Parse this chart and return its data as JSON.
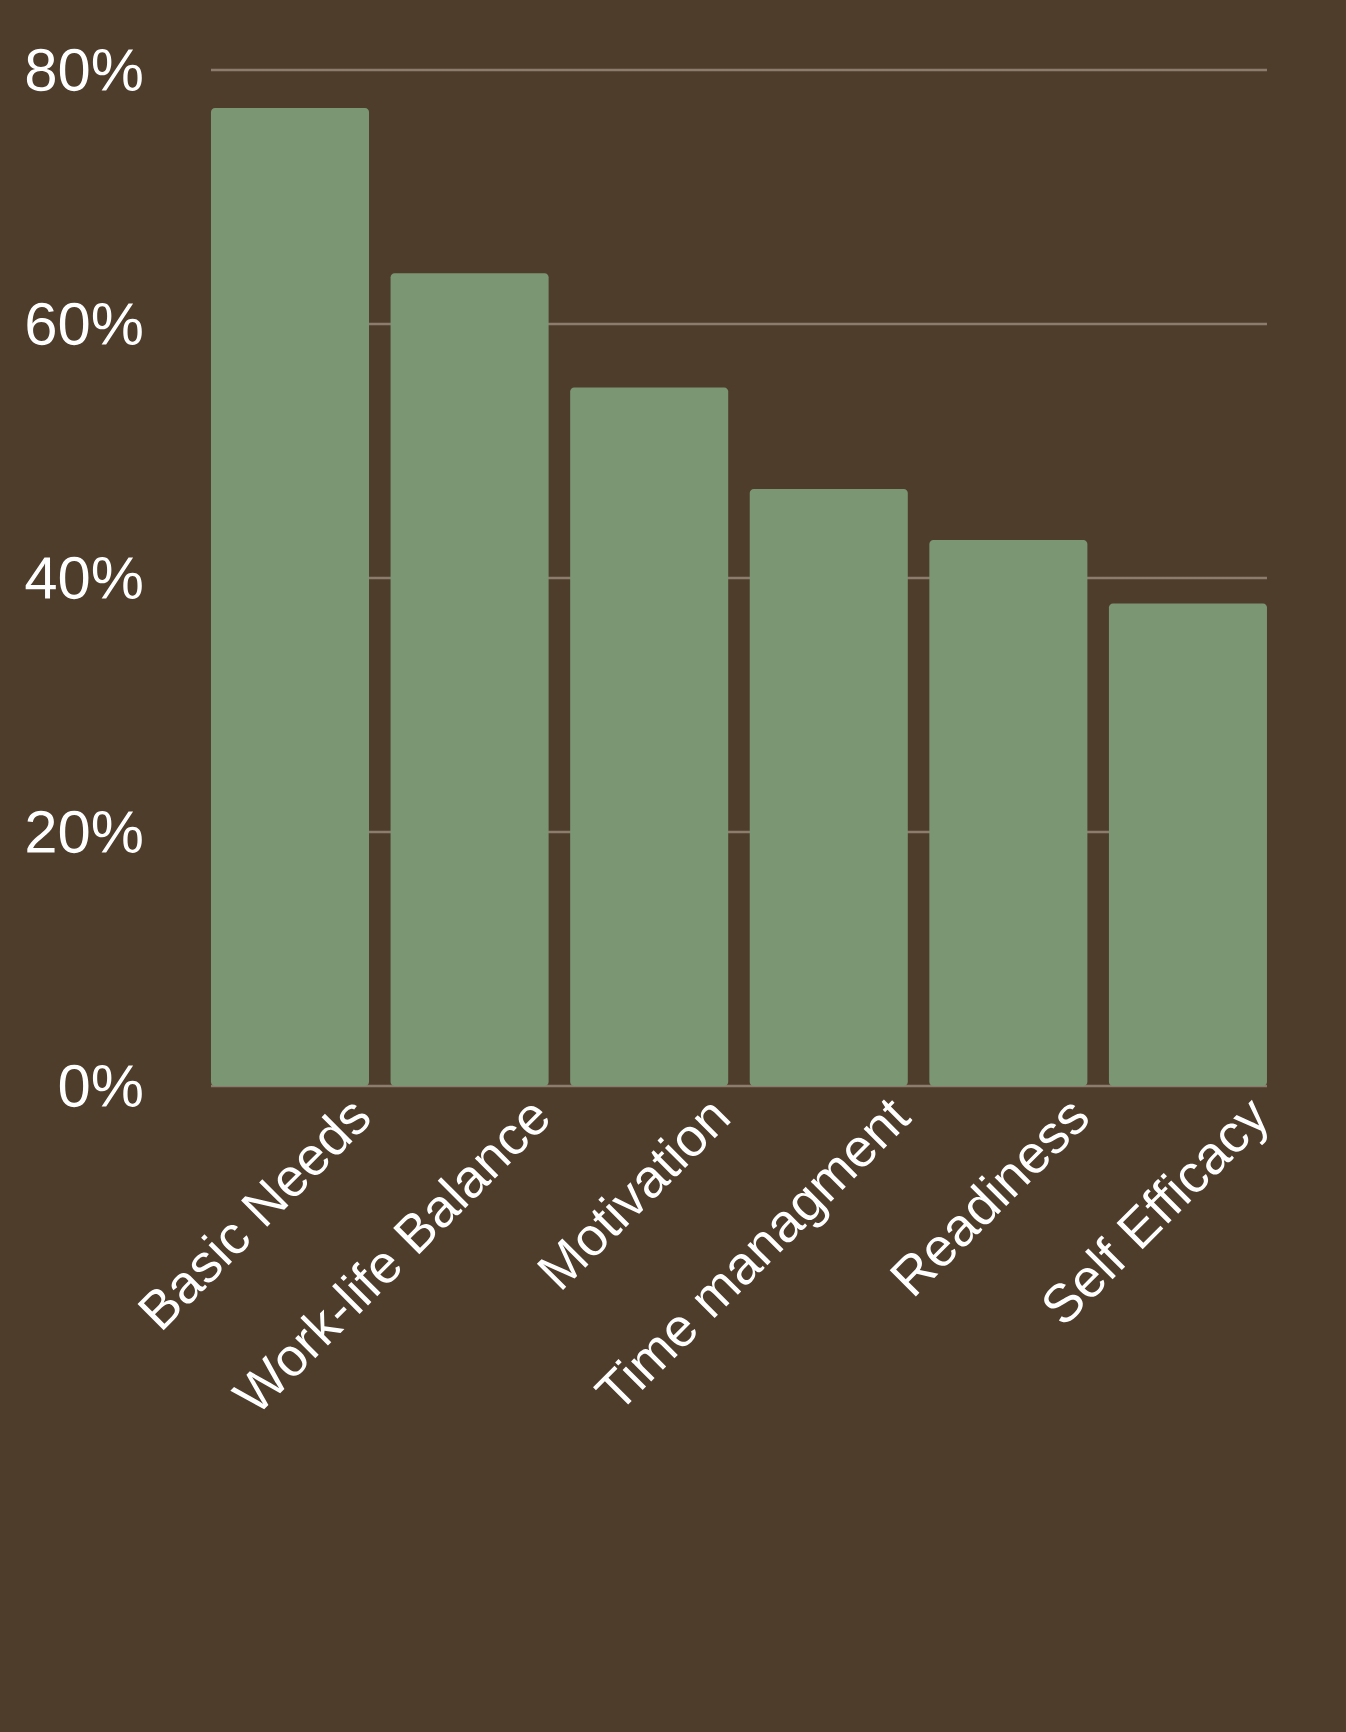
{
  "chart_data": {
    "type": "bar",
    "categories": [
      "Basic Needs",
      "Work-life Balance",
      "Motivation",
      "Time managment",
      "Readiness",
      "Self Efficacy"
    ],
    "values": [
      77,
      64,
      55,
      47,
      43,
      38
    ],
    "color": "#7b9673",
    "ylim": [
      0,
      80
    ],
    "yticks": [
      {
        "value": 0,
        "label": "0%"
      },
      {
        "value": 20,
        "label": "20%"
      },
      {
        "value": 40,
        "label": "40%"
      },
      {
        "value": 60,
        "label": "60%"
      },
      {
        "value": 80,
        "label": "80%"
      }
    ],
    "grid": "y"
  }
}
